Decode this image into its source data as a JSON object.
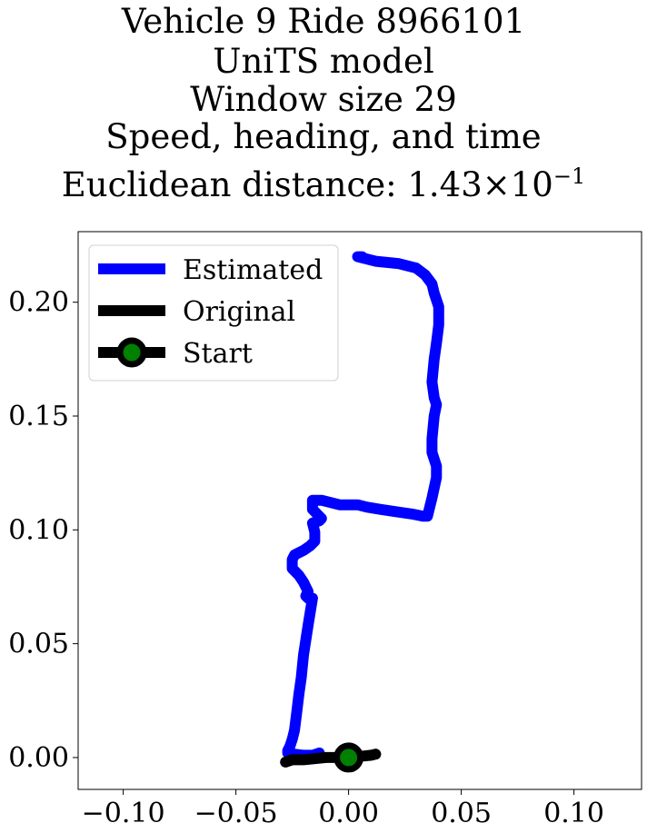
{
  "chart_data": {
    "type": "line",
    "title_lines": [
      "Vehicle 9 Ride 8966101",
      "UniTS model",
      "Window size 29",
      "Speed, heading, and time",
      "Euclidean distance: 1.43×10"
    ],
    "title_exponent": "−1",
    "xlim": [
      -0.12,
      0.13
    ],
    "ylim": [
      -0.014,
      0.231
    ],
    "x_ticks": [
      -0.1,
      -0.05,
      0.0,
      0.05,
      0.1
    ],
    "x_tick_labels": [
      "−0.10",
      "−0.05",
      "0.00",
      "0.05",
      "0.10"
    ],
    "y_ticks": [
      0.0,
      0.05,
      0.1,
      0.15,
      0.2
    ],
    "y_tick_labels": [
      "0.00",
      "0.05",
      "0.10",
      "0.15",
      "0.20"
    ],
    "grid": false,
    "legend_position": "top-left",
    "series": [
      {
        "name": "Estimated",
        "color": "#0000ff",
        "x": [
          0.006,
          0.004,
          0.012,
          0.022,
          0.03,
          0.034,
          0.037,
          0.038,
          0.04,
          0.04,
          0.039,
          0.038,
          0.037,
          0.038,
          0.039,
          0.038,
          0.037,
          0.037,
          0.039,
          0.039,
          0.037,
          0.036,
          0.035,
          0.033,
          0.028,
          0.021,
          0.014,
          0.008,
          0.004,
          0.0,
          -0.004,
          -0.008,
          -0.012,
          -0.016,
          -0.016,
          -0.013,
          -0.012,
          -0.013,
          -0.016,
          -0.015,
          -0.015,
          -0.017,
          -0.02,
          -0.022,
          -0.024,
          -0.025,
          -0.025,
          -0.022,
          -0.02,
          -0.019,
          -0.018,
          -0.019,
          -0.018,
          -0.017,
          -0.016,
          -0.018,
          -0.02,
          -0.021,
          -0.022,
          -0.023,
          -0.024,
          -0.025,
          -0.026,
          -0.027,
          -0.027,
          -0.026,
          -0.024,
          -0.02,
          -0.016,
          -0.013
        ],
        "y": [
          0.22,
          0.22,
          0.218,
          0.217,
          0.215,
          0.212,
          0.208,
          0.204,
          0.198,
          0.19,
          0.182,
          0.175,
          0.165,
          0.158,
          0.155,
          0.15,
          0.14,
          0.134,
          0.128,
          0.123,
          0.114,
          0.11,
          0.106,
          0.106,
          0.107,
          0.108,
          0.109,
          0.11,
          0.111,
          0.111,
          0.111,
          0.112,
          0.113,
          0.113,
          0.109,
          0.106,
          0.105,
          0.104,
          0.103,
          0.099,
          0.095,
          0.093,
          0.091,
          0.09,
          0.089,
          0.087,
          0.083,
          0.08,
          0.077,
          0.075,
          0.073,
          0.071,
          0.07,
          0.07,
          0.07,
          0.058,
          0.045,
          0.035,
          0.028,
          0.02,
          0.012,
          0.008,
          0.005,
          0.003,
          0.002,
          0.001,
          0.0015,
          0.001,
          0.001,
          0.002
        ]
      },
      {
        "name": "Original",
        "color": "#000000",
        "x": [
          -0.028,
          -0.025,
          -0.02,
          -0.015,
          -0.01,
          -0.005,
          0.0,
          0.005,
          0.01,
          0.012
        ],
        "y": [
          -0.002,
          -0.001,
          -0.001,
          -0.0005,
          0.0,
          0.0,
          0.0,
          0.0005,
          0.001,
          0.0015
        ]
      }
    ],
    "start_point": {
      "name": "Start",
      "x": 0.0,
      "y": 0.0,
      "color": "#008000",
      "edge_color": "#000000"
    }
  }
}
